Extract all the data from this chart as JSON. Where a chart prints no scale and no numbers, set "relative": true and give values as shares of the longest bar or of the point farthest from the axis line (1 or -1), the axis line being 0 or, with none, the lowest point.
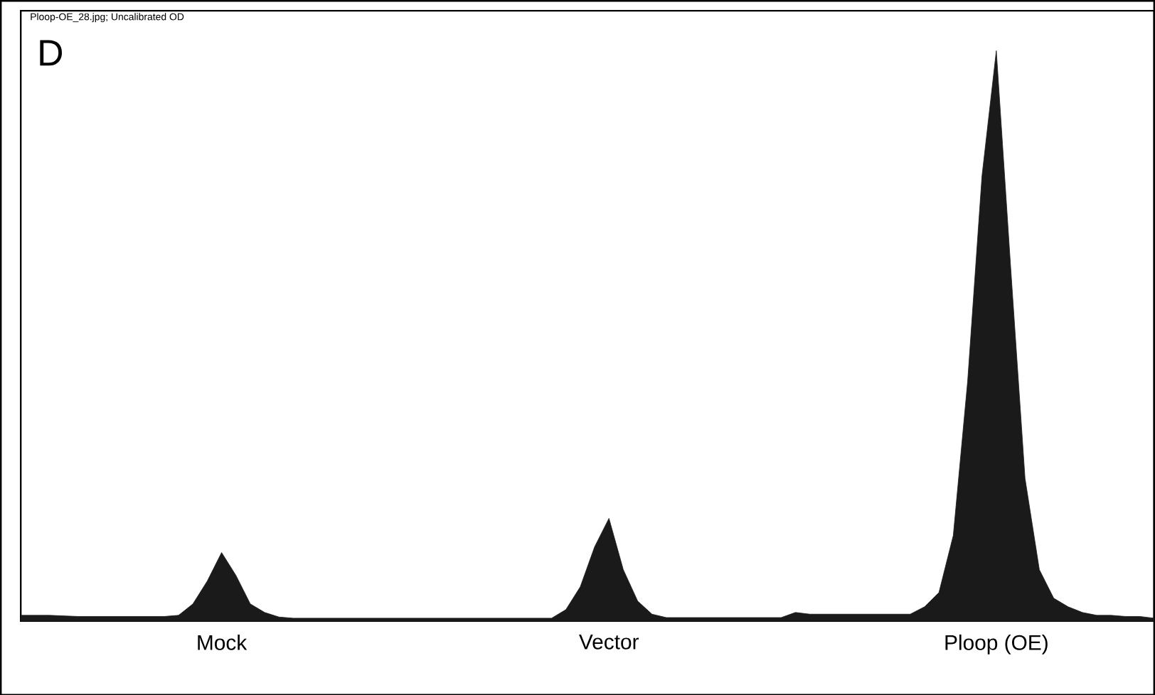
{
  "chart_data": {
    "type": "area",
    "relative": true,
    "title": "Ploop-OE_28.jpg; Uncalibrated OD",
    "annotations": [
      "D"
    ],
    "color": "#1a1a1a",
    "categories": [
      null,
      null,
      null,
      null,
      null,
      null,
      null,
      null,
      null,
      null,
      null,
      null,
      null,
      null,
      "Mock",
      null,
      null,
      null,
      null,
      null,
      null,
      null,
      null,
      null,
      null,
      null,
      null,
      null,
      null,
      null,
      null,
      null,
      null,
      null,
      null,
      null,
      null,
      null,
      null,
      null,
      null,
      "Vector",
      null,
      null,
      null,
      null,
      null,
      null,
      null,
      null,
      null,
      null,
      null,
      null,
      null,
      null,
      null,
      null,
      null,
      null,
      null,
      null,
      null,
      null,
      null,
      null,
      null,
      null,
      "Ploop (OE)",
      null,
      null,
      null,
      null,
      null,
      null,
      null,
      null,
      null,
      null,
      null
    ],
    "values": [
      0.01,
      0.01,
      0.01,
      0.009,
      0.008,
      0.008,
      0.008,
      0.008,
      0.008,
      0.008,
      0.008,
      0.01,
      0.03,
      0.07,
      0.12,
      0.08,
      0.03,
      0.015,
      0.007,
      0.005,
      0.005,
      0.005,
      0.005,
      0.005,
      0.005,
      0.005,
      0.005,
      0.005,
      0.005,
      0.005,
      0.005,
      0.005,
      0.005,
      0.005,
      0.005,
      0.005,
      0.005,
      0.005,
      0.02,
      0.06,
      0.13,
      0.18,
      0.09,
      0.035,
      0.012,
      0.006,
      0.006,
      0.006,
      0.006,
      0.006,
      0.006,
      0.006,
      0.006,
      0.006,
      0.015,
      0.012,
      0.012,
      0.012,
      0.012,
      0.012,
      0.012,
      0.012,
      0.012,
      0.025,
      0.05,
      0.15,
      0.42,
      0.78,
      1.0,
      0.62,
      0.25,
      0.09,
      0.04,
      0.025,
      0.015,
      0.01,
      0.01,
      0.008,
      0.008,
      0.005
    ]
  }
}
